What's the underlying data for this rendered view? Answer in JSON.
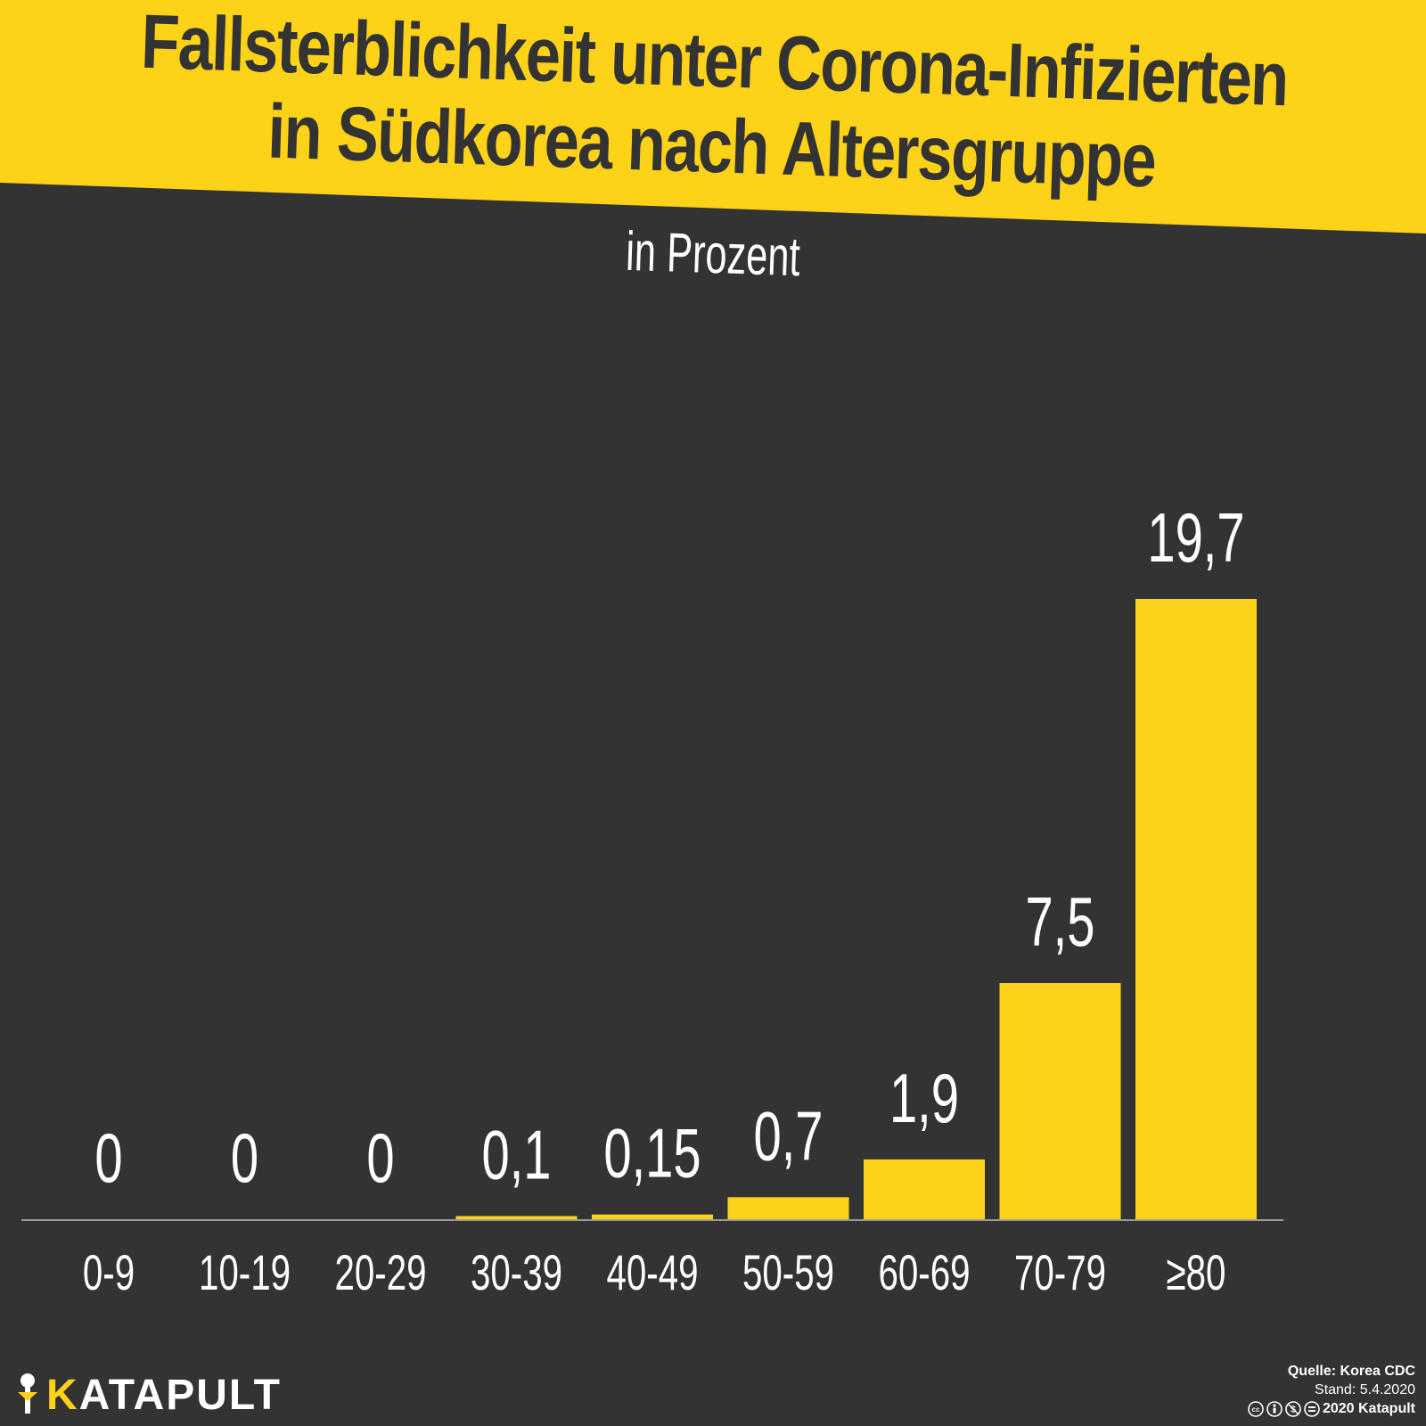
{
  "colors": {
    "background": "#333333",
    "accent": "#fdd31a",
    "text": "#ffffff",
    "title_text": "#333333"
  },
  "header": {
    "title_line1": "Fallsterblichkeit unter Corona-Infizierten",
    "title_line2": "in Südkorea nach Altersgruppe",
    "subtitle": "in Prozent"
  },
  "chart_data": {
    "type": "bar",
    "categories": [
      "0-9",
      "10-19",
      "20-29",
      "30-39",
      "40-49",
      "50-59",
      "60-69",
      "70-79",
      "≥80"
    ],
    "values": [
      0,
      0,
      0,
      0.1,
      0.15,
      0.7,
      1.9,
      7.5,
      19.7
    ],
    "value_labels": [
      "0",
      "0",
      "0",
      "0,1",
      "0,15",
      "0,7",
      "1,9",
      "7,5",
      "19,7"
    ],
    "title": "Fallsterblichkeit unter Corona-Infizierten in Südkorea nach Altersgruppe",
    "subtitle": "in Prozent",
    "ylim": [
      0,
      19.7
    ],
    "grid": false,
    "legend": "none",
    "bar_color": "#fdd31a"
  },
  "footer": {
    "logo_k": "K",
    "logo_rest": "ATAPULT",
    "source": "Quelle: Korea CDC",
    "date": "Stand: 5.4.2020",
    "copyright": "2020 Katapult",
    "license_icons": [
      "cc-icon",
      "by-icon",
      "nc-icon",
      "nd-icon"
    ]
  }
}
